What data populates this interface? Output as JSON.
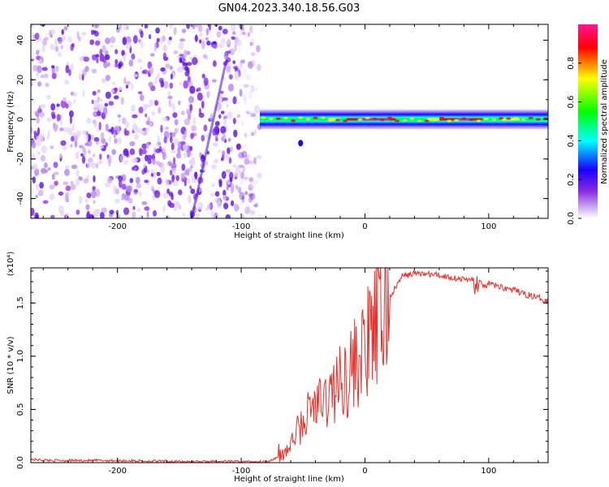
{
  "figure": {
    "title": "GN04.2023.340.18.56.G03"
  },
  "chart_data": [
    {
      "type": "heatmap",
      "title": "GN04.2023.340.18.56.G03",
      "xlabel": "Height of straight line (km)",
      "ylabel": "Frequency (Hz)",
      "xlim": [
        -270,
        148
      ],
      "ylim": [
        -50,
        48
      ],
      "x_ticks": [
        -200,
        -100,
        0,
        100
      ],
      "x_tick_labels": [
        "-200",
        "-100",
        "0",
        "100"
      ],
      "y_ticks": [
        -40,
        -20,
        0,
        20,
        40
      ],
      "y_tick_labels": [
        "-40",
        "-20",
        "0",
        "20",
        "40"
      ],
      "colorbar": {
        "label": "Normalized spectral amplitude",
        "range": [
          0,
          1
        ],
        "ticks": [
          0.0,
          0.2,
          0.4,
          0.6,
          0.8
        ],
        "tick_labels": [
          "0.0",
          "0.2",
          "0.4",
          "0.6",
          "0.8"
        ],
        "colors": [
          "#ffffff",
          "#8a2be2",
          "#0000ff",
          "#00ffff",
          "#00ff00",
          "#ffff00",
          "#ff0000",
          "#ff1493"
        ]
      },
      "regions": [
        {
          "name": "noise",
          "x_range": [
            -270,
            -85
          ],
          "y_range": [
            -50,
            48
          ],
          "level": 0.15
        },
        {
          "name": "signal",
          "x_range": [
            -85,
            148
          ],
          "y_center": 0,
          "y_halfwidth": 5,
          "level": 0.85
        }
      ]
    },
    {
      "type": "line",
      "xlabel": "Height of straight line (km)",
      "ylabel": "SNR (10 * v/v)",
      "y_scale_label": "(x10⁴)",
      "xlim": [
        -270,
        148
      ],
      "ylim": [
        0,
        1.83
      ],
      "x_ticks": [
        -200,
        -100,
        0,
        100
      ],
      "x_tick_labels": [
        "-200",
        "-100",
        "0",
        "100"
      ],
      "y_ticks": [
        0.0,
        0.5,
        1.0,
        1.5
      ],
      "y_tick_labels": [
        "0.0",
        "0.5",
        "1.0",
        "1.5"
      ],
      "color": "#e8302a",
      "series": [
        {
          "x": [
            -270,
            -250,
            -200,
            -150,
            -100,
            -80,
            -70,
            -60,
            -55,
            -50,
            -45,
            -40,
            -35,
            -30,
            -25,
            -20,
            -10,
            0,
            10,
            20,
            30,
            40,
            50,
            60,
            70,
            80,
            85,
            90,
            95,
            100,
            110,
            120,
            130,
            140,
            148
          ],
          "y": [
            0.03,
            0.02,
            0.02,
            0.01,
            0.01,
            0.01,
            0.05,
            0.15,
            0.3,
            0.35,
            0.5,
            0.55,
            0.55,
            0.6,
            0.7,
            0.75,
            0.9,
            1.05,
            1.3,
            1.55,
            1.75,
            1.78,
            1.77,
            1.76,
            1.74,
            1.72,
            1.72,
            1.75,
            1.65,
            1.68,
            1.65,
            1.62,
            1.58,
            1.55,
            1.52
          ]
        }
      ]
    }
  ]
}
